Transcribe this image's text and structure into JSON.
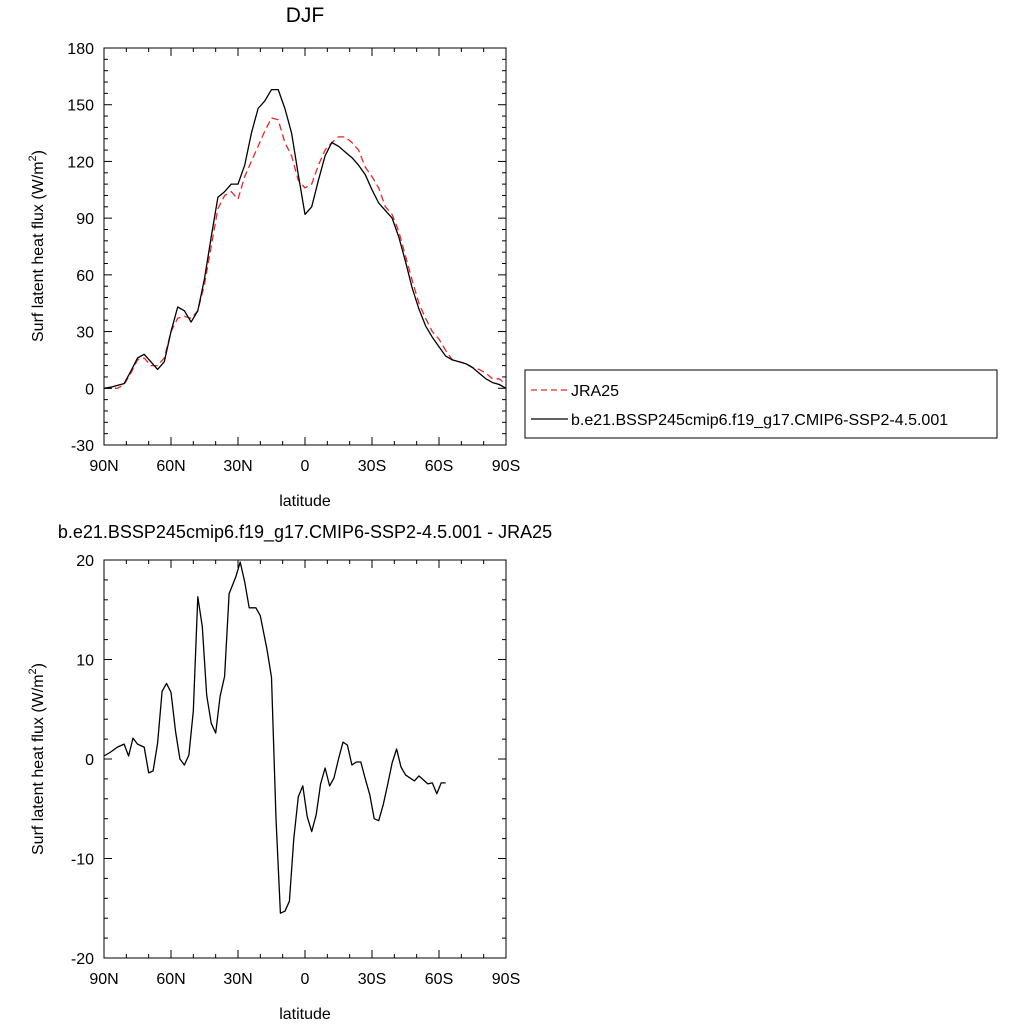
{
  "chart_data": [
    {
      "type": "line",
      "title": "DJF",
      "xlabel": "latitude",
      "ylabel": "Surf latent heat flux (W/m",
      "ylabel_sup": "2",
      "ylabel_close": ")",
      "xlim": [
        90,
        -90
      ],
      "ylim": [
        -30,
        180
      ],
      "xticks": [
        90,
        60,
        30,
        0,
        -30,
        -60,
        -90
      ],
      "xtick_labels": [
        "90N",
        "60N",
        "30N",
        "0",
        "30S",
        "60S",
        "90S"
      ],
      "yticks": [
        -30,
        0,
        30,
        60,
        90,
        120,
        150,
        180
      ],
      "ytick_labels": [
        "-30",
        "0",
        "30",
        "60",
        "90",
        "120",
        "150",
        "180"
      ],
      "legend": "right",
      "series": [
        {
          "name": "JRA25",
          "color": "#e8262a",
          "dash": "dashed",
          "points": [
            [
              90,
              0
            ],
            [
              87,
              0
            ],
            [
              84,
              0
            ],
            [
              81,
              2
            ],
            [
              78,
              8
            ],
            [
              75,
              15
            ],
            [
              72,
              16
            ],
            [
              69,
              12
            ],
            [
              66,
              12
            ],
            [
              63,
              16
            ],
            [
              60,
              30
            ],
            [
              57,
              37
            ],
            [
              54,
              38
            ],
            [
              51,
              37
            ],
            [
              48,
              41
            ],
            [
              45,
              55
            ],
            [
              42,
              75
            ],
            [
              39,
              95
            ],
            [
              36,
              102
            ],
            [
              33,
              104
            ],
            [
              30,
              100
            ],
            [
              27,
              112
            ],
            [
              24,
              120
            ],
            [
              21,
              128
            ],
            [
              18,
              136
            ],
            [
              15,
              143
            ],
            [
              12,
              142
            ],
            [
              9,
              130
            ],
            [
              6,
              123
            ],
            [
              3,
              110
            ],
            [
              0,
              106
            ],
            [
              -3,
              108
            ],
            [
              -6,
              118
            ],
            [
              -9,
              126
            ],
            [
              -12,
              130
            ],
            [
              -15,
              133
            ],
            [
              -18,
              133
            ],
            [
              -21,
              130
            ],
            [
              -24,
              126
            ],
            [
              -27,
              117
            ],
            [
              -30,
              112
            ],
            [
              -33,
              106
            ],
            [
              -36,
              96
            ],
            [
              -39,
              92
            ],
            [
              -42,
              83
            ],
            [
              -45,
              70
            ],
            [
              -48,
              57
            ],
            [
              -51,
              45
            ],
            [
              -54,
              37
            ],
            [
              -57,
              30
            ],
            [
              -60,
              26
            ],
            [
              -63,
              20
            ],
            [
              -66,
              15
            ],
            [
              -69,
              14
            ],
            [
              -72,
              13
            ],
            [
              -75,
              11
            ],
            [
              -78,
              10
            ],
            [
              -81,
              8
            ],
            [
              -84,
              5
            ],
            [
              -87,
              5
            ],
            [
              -90,
              2
            ]
          ]
        },
        {
          "name": "b.e21.BSSP245cmip6.f19_g17.CMIP6-SSP2-4.5.001",
          "color": "#000000",
          "dash": "solid",
          "points": [
            [
              90,
              0
            ],
            [
              87,
              0.6
            ],
            [
              84,
              1.5
            ],
            [
              81,
              2.5
            ],
            [
              78,
              9
            ],
            [
              75,
              16
            ],
            [
              72,
              18
            ],
            [
              69,
              14
            ],
            [
              66,
              10
            ],
            [
              63,
              14
            ],
            [
              60,
              30
            ],
            [
              57,
              43
            ],
            [
              54,
              41
            ],
            [
              51,
              35
            ],
            [
              48,
              41
            ],
            [
              45,
              58
            ],
            [
              42,
              80
            ],
            [
              39,
              101
            ],
            [
              36,
              104
            ],
            [
              33,
              108
            ],
            [
              30,
              108
            ],
            [
              27,
              118
            ],
            [
              24,
              135
            ],
            [
              21,
              148
            ],
            [
              18,
              152
            ],
            [
              15,
              158
            ],
            [
              12,
              158
            ],
            [
              9,
              148
            ],
            [
              6,
              135
            ],
            [
              3,
              113
            ],
            [
              0,
              92
            ],
            [
              -3,
              96
            ],
            [
              -6,
              110
            ],
            [
              -9,
              123
            ],
            [
              -12,
              130
            ],
            [
              -15,
              128
            ],
            [
              -18,
              125
            ],
            [
              -21,
              122
            ],
            [
              -24,
              118
            ],
            [
              -27,
              113
            ],
            [
              -30,
              105
            ],
            [
              -33,
              98
            ],
            [
              -36,
              94
            ],
            [
              -39,
              90
            ],
            [
              -42,
              80
            ],
            [
              -45,
              67
            ],
            [
              -48,
              53
            ],
            [
              -51,
              42
            ],
            [
              -54,
              33
            ],
            [
              -57,
              27
            ],
            [
              -60,
              22
            ],
            [
              -63,
              17
            ],
            [
              -66,
              15
            ],
            [
              -69,
              14
            ],
            [
              -72,
              13
            ],
            [
              -75,
              11
            ],
            [
              -78,
              8
            ],
            [
              -81,
              5
            ],
            [
              -84,
              3
            ],
            [
              -87,
              2
            ],
            [
              -90,
              0
            ]
          ]
        }
      ]
    },
    {
      "type": "line",
      "title": "b.e21.BSSP245cmip6.f19_g17.CMIP6-SSP2-4.5.001 - JRA25",
      "xlabel": "latitude",
      "ylabel": "Surf latent heat flux (W/m",
      "ylabel_sup": "2",
      "ylabel_close": ")",
      "xlim": [
        90,
        -90
      ],
      "ylim": [
        -20,
        20
      ],
      "xticks": [
        90,
        60,
        30,
        0,
        -30,
        -60,
        -90
      ],
      "xtick_labels": [
        "90N",
        "60N",
        "30N",
        "0",
        "30S",
        "60S",
        "90S"
      ],
      "yticks": [
        -20,
        -10,
        0,
        10,
        20
      ],
      "ytick_labels": [
        "-20",
        "-10",
        "0",
        "10",
        "20"
      ],
      "series": [
        {
          "color": "#000000",
          "dash": "solid",
          "points": [
            [
              90,
              0.3
            ],
            [
              87,
              0.7
            ],
            [
              84,
              1.2
            ],
            [
              81,
              1.5
            ],
            [
              79,
              0.3
            ],
            [
              77,
              2.1
            ],
            [
              75,
              1.5
            ],
            [
              72,
              1.2
            ],
            [
              70,
              -1.4
            ],
            [
              68,
              -1.2
            ],
            [
              66,
              1.6
            ],
            [
              64,
              6.8
            ],
            [
              62,
              7.6
            ],
            [
              60,
              6.7
            ],
            [
              58,
              2.8
            ],
            [
              56,
              0.0
            ],
            [
              54,
              -0.6
            ],
            [
              52,
              0.4
            ],
            [
              50,
              4.8
            ],
            [
              48,
              16.3
            ],
            [
              46,
              13.3
            ],
            [
              44,
              6.4
            ],
            [
              42,
              3.6
            ],
            [
              40,
              2.6
            ],
            [
              38,
              6.3
            ],
            [
              36,
              8.3
            ],
            [
              34,
              16.6
            ],
            [
              31,
              18.3
            ],
            [
              29,
              19.8
            ],
            [
              27,
              17.8
            ],
            [
              25,
              15.2
            ],
            [
              22,
              15.2
            ],
            [
              20,
              14.4
            ],
            [
              17,
              11.0
            ],
            [
              15,
              8.2
            ],
            [
              13,
              -6.0
            ],
            [
              11,
              -15.5
            ],
            [
              9,
              -15.3
            ],
            [
              7,
              -14.3
            ],
            [
              5,
              -8.0
            ],
            [
              3,
              -3.8
            ],
            [
              1,
              -2.7
            ],
            [
              -1,
              -5.8
            ],
            [
              -3,
              -7.3
            ],
            [
              -5,
              -5.6
            ],
            [
              -7,
              -2.5
            ],
            [
              -9,
              -0.9
            ],
            [
              -11,
              -2.7
            ],
            [
              -13,
              -1.9
            ],
            [
              -15,
              0.0
            ],
            [
              -17,
              1.7
            ],
            [
              -19,
              1.4
            ],
            [
              -21,
              -0.6
            ],
            [
              -23,
              -0.3
            ],
            [
              -25,
              -0.3
            ],
            [
              -27,
              -2.0
            ],
            [
              -29,
              -3.6
            ],
            [
              -31,
              -6.0
            ],
            [
              -33,
              -6.2
            ],
            [
              -35,
              -4.6
            ],
            [
              -37,
              -2.6
            ],
            [
              -39,
              -0.4
            ],
            [
              -41,
              1.0
            ],
            [
              -43,
              -0.8
            ],
            [
              -45,
              -1.6
            ],
            [
              -47,
              -1.9
            ],
            [
              -49,
              -2.2
            ],
            [
              -51,
              -1.7
            ],
            [
              -53,
              -2.1
            ],
            [
              -55,
              -2.5
            ],
            [
              -57,
              -2.4
            ],
            [
              -59,
              -3.5
            ],
            [
              -61,
              -2.4
            ],
            [
              -63,
              -2.4
            ]
          ]
        }
      ]
    }
  ]
}
